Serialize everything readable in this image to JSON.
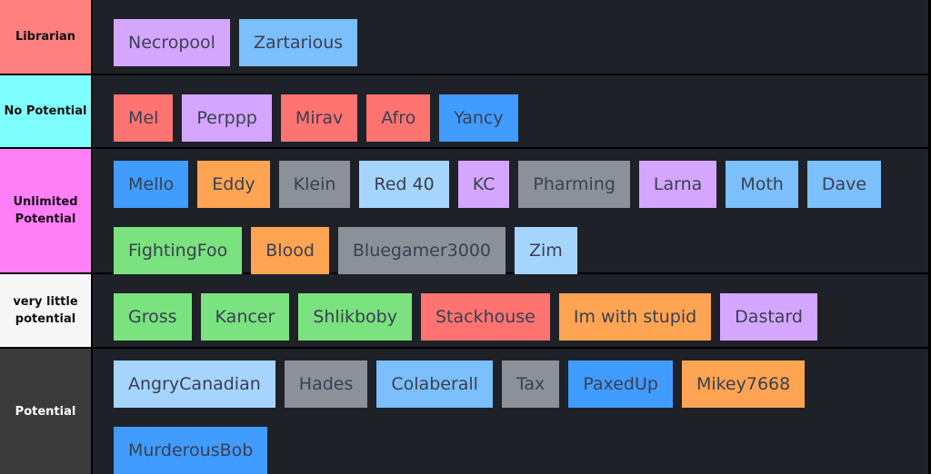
{
  "colors": {
    "background": "#1f2128",
    "border": "#000000",
    "purple": "#d5a6ff",
    "light_blue": "#7bbffc",
    "pale_blue": "#a5d5fd",
    "blue": "#409cff",
    "red": "#ff7371",
    "orange": "#ffa452",
    "gray": "#8c9199",
    "green": "#7ae27e"
  },
  "tiers": [
    {
      "label": "Librarian",
      "label_bg": "#ff7f7f",
      "label_color": "#111111",
      "items": [
        {
          "name": "Necropool",
          "color": "#d5a6ff"
        },
        {
          "name": "Zartarious",
          "color": "#7bbffc"
        }
      ]
    },
    {
      "label": "No Potential",
      "label_bg": "#7ffeff",
      "label_color": "#111111",
      "items": [
        {
          "name": "Mel",
          "color": "#ff7371"
        },
        {
          "name": "Perppp",
          "color": "#d5a6ff"
        },
        {
          "name": "Mirav",
          "color": "#ff7371"
        },
        {
          "name": "Afro",
          "color": "#ff7371"
        },
        {
          "name": "Yancy",
          "color": "#409cff"
        }
      ]
    },
    {
      "label": "Unlimited Potential",
      "label_bg": "#ff7ff7",
      "label_color": "#1a0a1a",
      "items": [
        {
          "name": "Mello",
          "color": "#409cff"
        },
        {
          "name": "Eddy",
          "color": "#ffa452"
        },
        {
          "name": "Klein",
          "color": "#8c9199"
        },
        {
          "name": "Red 40",
          "color": "#a5d5fd"
        },
        {
          "name": "KC",
          "color": "#d5a6ff"
        },
        {
          "name": "Pharming",
          "color": "#8c9199"
        },
        {
          "name": "Larna",
          "color": "#d5a6ff"
        },
        {
          "name": "Moth",
          "color": "#7bbffc"
        },
        {
          "name": "Dave",
          "color": "#7bbffc"
        },
        {
          "name": "FightingFoo",
          "color": "#7ae27e"
        },
        {
          "name": "Blood",
          "color": "#ffa452"
        },
        {
          "name": "Bluegamer3000",
          "color": "#8c9199"
        },
        {
          "name": "Zim",
          "color": "#a5d5fd"
        }
      ]
    },
    {
      "label": "very little potential",
      "label_bg": "#f7f7f7",
      "label_color": "#111111",
      "items": [
        {
          "name": "Gross",
          "color": "#7ae27e"
        },
        {
          "name": "Kancer",
          "color": "#7ae27e"
        },
        {
          "name": "Shlikboby",
          "color": "#7ae27e"
        },
        {
          "name": "Stackhouse",
          "color": "#ff7371"
        },
        {
          "name": "Im with stupid",
          "color": "#ffa452"
        },
        {
          "name": "Dastard",
          "color": "#d5a6ff"
        }
      ]
    },
    {
      "label": "Potential",
      "label_bg": "#3a3a3a",
      "label_color": "#ffffff",
      "items": [
        {
          "name": "AngryCanadian",
          "color": "#a5d5fd"
        },
        {
          "name": "Hades",
          "color": "#8c9199"
        },
        {
          "name": "Colaberall",
          "color": "#7bbffc"
        },
        {
          "name": "Tax",
          "color": "#8c9199"
        },
        {
          "name": "PaxedUp",
          "color": "#409cff"
        },
        {
          "name": "Mikey7668",
          "color": "#ffa452"
        },
        {
          "name": "MurderousBob",
          "color": "#409cff"
        }
      ]
    }
  ]
}
